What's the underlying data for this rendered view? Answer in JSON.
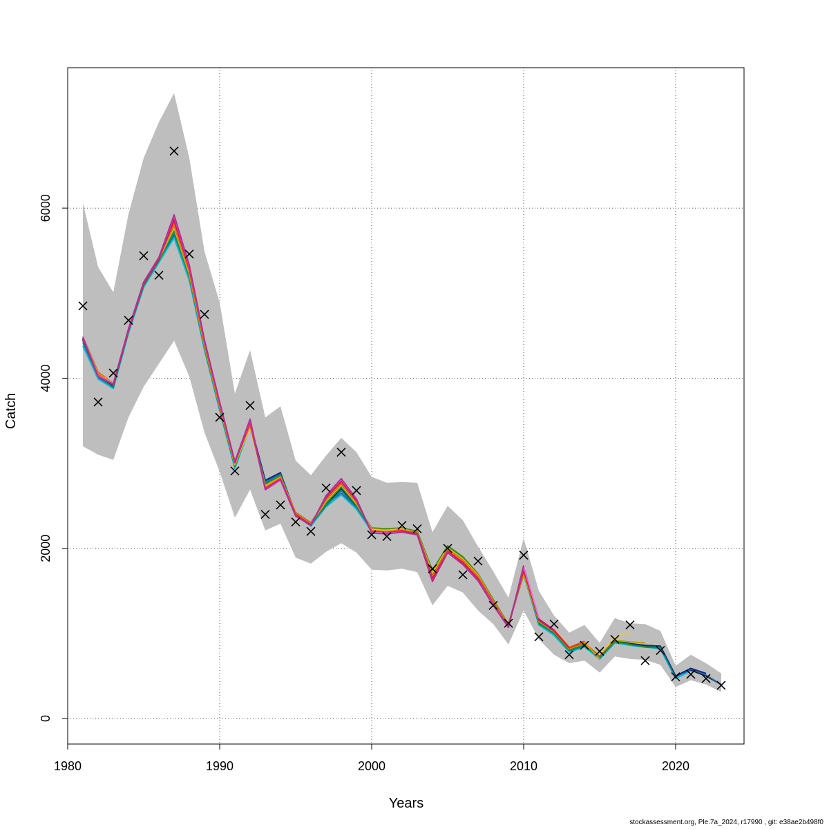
{
  "chart_data": {
    "type": "line",
    "title": "",
    "xlabel": "Years",
    "ylabel": "Catch",
    "xlim": [
      1980,
      2024.5
    ],
    "ylim": [
      -300,
      7650
    ],
    "x_ticks": [
      1980,
      1990,
      2000,
      2010,
      2020
    ],
    "y_ticks": [
      0,
      2000,
      4000,
      6000
    ],
    "grid": true,
    "band_color": "#bebebe",
    "confidence_band": {
      "x": [
        1981,
        1982,
        1983,
        1984,
        1985,
        1986,
        1987,
        1988,
        1989,
        1990,
        1991,
        1992,
        1993,
        1994,
        1995,
        1996,
        1997,
        1998,
        1999,
        2000,
        2001,
        2002,
        2003,
        2004,
        2005,
        2006,
        2007,
        2008,
        2009,
        2010,
        2011,
        2012,
        2013,
        2014,
        2015,
        2016,
        2017,
        2018,
        2019,
        2020,
        2021,
        2022,
        2023
      ],
      "lower": [
        3200,
        3100,
        3040,
        3540,
        3900,
        4170,
        4440,
        4020,
        3360,
        2900,
        2360,
        2690,
        2210,
        2290,
        1890,
        1820,
        1960,
        2060,
        1950,
        1750,
        1740,
        1760,
        1720,
        1330,
        1560,
        1480,
        1270,
        1110,
        870,
        1270,
        930,
        750,
        650,
        680,
        540,
        730,
        700,
        690,
        630,
        370,
        450,
        400,
        310
      ],
      "upper": [
        6060,
        5310,
        5010,
        5930,
        6590,
        7010,
        7350,
        6590,
        5490,
        4890,
        3820,
        4330,
        3540,
        3670,
        3030,
        2860,
        3090,
        3300,
        3130,
        2840,
        2770,
        2780,
        2770,
        2190,
        2500,
        2330,
        2020,
        1730,
        1420,
        2120,
        1500,
        1210,
        1010,
        1100,
        890,
        1180,
        1120,
        1110,
        1030,
        620,
        750,
        650,
        530
      ]
    },
    "observed": {
      "x": [
        1981,
        1982,
        1983,
        1984,
        1985,
        1986,
        1987,
        1988,
        1989,
        1990,
        1991,
        1992,
        1993,
        1994,
        1995,
        1996,
        1997,
        1998,
        1999,
        2000,
        2001,
        2002,
        2003,
        2004,
        2005,
        2006,
        2007,
        2008,
        2009,
        2010,
        2011,
        2012,
        2013,
        2014,
        2015,
        2016,
        2017,
        2018,
        2019,
        2020,
        2021,
        2022,
        2023
      ],
      "y": [
        4850,
        3720,
        4060,
        4680,
        5440,
        5210,
        6670,
        5460,
        4750,
        3540,
        2910,
        3680,
        2400,
        2510,
        2310,
        2200,
        2710,
        3130,
        2680,
        2160,
        2140,
        2270,
        2230,
        1760,
        2000,
        1690,
        1850,
        1330,
        1120,
        1920,
        960,
        1110,
        750,
        860,
        790,
        930,
        1100,
        680,
        800,
        490,
        520,
        470,
        390
      ]
    },
    "series": [
      {
        "color": "#000000",
        "end_year": 2023,
        "y": [
          4450,
          4010,
          3890,
          4550,
          5090,
          5380,
          5700,
          5180,
          4350,
          3640,
          2960,
          3450,
          2760,
          2870,
          2400,
          2270,
          2510,
          2690,
          2490,
          2200,
          2200,
          2210,
          2180,
          1680,
          1990,
          1860,
          1660,
          1390,
          1100,
          1740,
          1120,
          1000,
          800,
          860,
          710,
          910,
          880,
          860,
          850,
          500,
          570,
          500,
          400
        ]
      },
      {
        "color": "#2166ac",
        "end_year": 2023,
        "y": [
          4420,
          4000,
          3900,
          4540,
          5080,
          5370,
          5680,
          5170,
          4340,
          3630,
          2950,
          3440,
          2790,
          2880,
          2410,
          2280,
          2520,
          2650,
          2470,
          2210,
          2190,
          2220,
          2190,
          1700,
          1990,
          1850,
          1630,
          1380,
          1110,
          1720,
          1110,
          990,
          790,
          850,
          700,
          900,
          870,
          850,
          840,
          490,
          580,
          510,
          400
        ]
      },
      {
        "color": "#1a237e",
        "end_year": 2022,
        "y": [
          4460,
          4030,
          3910,
          4560,
          5100,
          5390,
          5730,
          5200,
          4370,
          3650,
          2960,
          3470,
          2800,
          2890,
          2390,
          2270,
          2540,
          2700,
          2500,
          2210,
          2200,
          2220,
          2180,
          1690,
          1980,
          1840,
          1620,
          1370,
          1100,
          1730,
          1110,
          980,
          790,
          860,
          700,
          900,
          880,
          860,
          850,
          500,
          590,
          530
        ]
      },
      {
        "color": "#00bcd4",
        "end_year": 2021,
        "y": [
          4380,
          3990,
          3880,
          4530,
          5070,
          5360,
          5650,
          5150,
          4330,
          3620,
          2940,
          3430,
          2770,
          2860,
          2390,
          2260,
          2490,
          2630,
          2460,
          2200,
          2190,
          2210,
          2170,
          1680,
          1970,
          1830,
          1640,
          1360,
          1100,
          1700,
          1100,
          980,
          780,
          840,
          700,
          890,
          860,
          840,
          820,
          470,
          560
        ]
      },
      {
        "color": "#008b8b",
        "end_year": 2020,
        "y": [
          4440,
          4020,
          3890,
          4550,
          5090,
          5380,
          5710,
          5190,
          4360,
          3640,
          2960,
          3460,
          2770,
          2870,
          2400,
          2280,
          2500,
          2680,
          2480,
          2220,
          2210,
          2230,
          2190,
          1700,
          2010,
          1870,
          1670,
          1380,
          1100,
          1710,
          1110,
          1000,
          800,
          860,
          710,
          900,
          870,
          840,
          830,
          480
        ]
      },
      {
        "color": "#228b22",
        "end_year": 2019,
        "y": [
          4460,
          4040,
          3920,
          4560,
          5100,
          5390,
          5740,
          5210,
          4360,
          3650,
          2970,
          3470,
          2750,
          2850,
          2400,
          2280,
          2530,
          2720,
          2510,
          2240,
          2230,
          2240,
          2200,
          1740,
          2030,
          1900,
          1700,
          1400,
          1110,
          1690,
          1130,
          1010,
          810,
          870,
          720,
          910,
          870,
          840,
          840
        ]
      },
      {
        "color": "#b8a000",
        "end_year": 2018,
        "y": [
          4470,
          4050,
          3920,
          4570,
          5110,
          5400,
          5760,
          5220,
          4380,
          3660,
          2980,
          3460,
          2740,
          2840,
          2410,
          2290,
          2550,
          2740,
          2520,
          2230,
          2220,
          2230,
          2190,
          1720,
          2010,
          1880,
          1690,
          1390,
          1110,
          1700,
          1140,
          1020,
          820,
          880,
          730,
          920,
          900,
          890
        ]
      },
      {
        "color": "#e8c547",
        "end_year": 2017,
        "y": [
          4480,
          4060,
          3930,
          4570,
          5110,
          5410,
          5780,
          5240,
          4390,
          3670,
          2990,
          3420,
          2730,
          2830,
          2420,
          2290,
          2560,
          2750,
          2530,
          2220,
          2210,
          2230,
          2180,
          1700,
          2000,
          1870,
          1680,
          1380,
          1100,
          1710,
          1150,
          1030,
          830,
          890,
          740,
          960,
          1010
        ]
      },
      {
        "color": "#8b6914",
        "end_year": 2016,
        "y": [
          4490,
          4070,
          3940,
          4580,
          5120,
          5420,
          5800,
          5250,
          4400,
          3680,
          3000,
          3450,
          2720,
          2820,
          2420,
          2300,
          2570,
          2760,
          2540,
          2210,
          2200,
          2220,
          2180,
          1680,
          1990,
          1860,
          1670,
          1380,
          1100,
          1720,
          1150,
          1030,
          830,
          890,
          730,
          920
        ]
      },
      {
        "color": "#ff8c00",
        "end_year": 2015,
        "y": [
          4480,
          4060,
          3940,
          4580,
          5120,
          5420,
          5820,
          5260,
          4410,
          3680,
          3000,
          3460,
          2720,
          2830,
          2410,
          2290,
          2580,
          2770,
          2550,
          2210,
          2200,
          2220,
          2170,
          1660,
          1980,
          1850,
          1660,
          1370,
          1090,
          1730,
          1160,
          1040,
          840,
          900,
          700
        ]
      },
      {
        "color": "#ff3030",
        "end_year": 2014,
        "y": [
          4470,
          4040,
          3930,
          4570,
          5110,
          5410,
          5840,
          5280,
          4420,
          3690,
          3010,
          3470,
          2710,
          2820,
          2400,
          2280,
          2590,
          2780,
          2560,
          2200,
          2190,
          2210,
          2170,
          1650,
          1970,
          1840,
          1650,
          1360,
          1080,
          1740,
          1170,
          1040,
          830,
          910
        ]
      },
      {
        "color": "#dc143c",
        "end_year": 2013,
        "y": [
          4460,
          4030,
          3920,
          4560,
          5110,
          5400,
          5860,
          5300,
          4430,
          3700,
          3010,
          3490,
          2700,
          2810,
          2390,
          2280,
          2600,
          2790,
          2560,
          2200,
          2180,
          2200,
          2170,
          1640,
          1960,
          1830,
          1640,
          1350,
          1080,
          1750,
          1160,
          1030,
          830
        ]
      },
      {
        "color": "#c71585",
        "end_year": 2012,
        "y": [
          4470,
          4020,
          3930,
          4570,
          5120,
          5410,
          5880,
          5310,
          4430,
          3700,
          3010,
          3500,
          2690,
          2800,
          2380,
          2270,
          2610,
          2800,
          2570,
          2190,
          2180,
          2200,
          2160,
          1620,
          1950,
          1820,
          1630,
          1350,
          1080,
          1780,
          1170,
          1040
        ]
      },
      {
        "color": "#da70d6",
        "end_year": 2011,
        "y": [
          4490,
          4030,
          3940,
          4580,
          5130,
          5420,
          5910,
          5320,
          4440,
          3710,
          3020,
          3510,
          2700,
          2800,
          2380,
          2270,
          2620,
          2810,
          2580,
          2190,
          2180,
          2190,
          2160,
          1610,
          1950,
          1810,
          1620,
          1340,
          1070,
          1790,
          1180
        ]
      },
      {
        "color": "#b03090",
        "end_year": 2010,
        "y": [
          4480,
          4020,
          3930,
          4580,
          5130,
          5420,
          5920,
          5330,
          4450,
          3720,
          3020,
          3520,
          2700,
          2810,
          2380,
          2270,
          2620,
          2820,
          2580,
          2180,
          2170,
          2190,
          2160,
          1610,
          1950,
          1810,
          1620,
          1330,
          1070,
          1800
        ]
      }
    ]
  },
  "footer_text": "stockassessment.org, Ple.7a_2024, r17990 , git: e38ae2b498f0"
}
